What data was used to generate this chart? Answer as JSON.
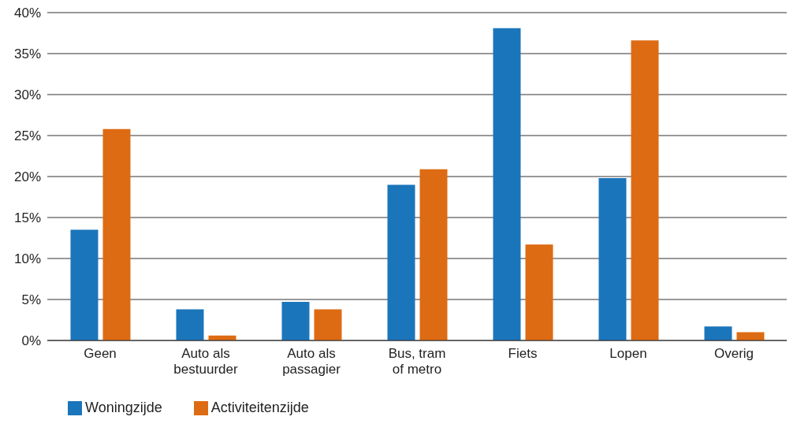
{
  "chart_data": {
    "type": "bar",
    "categories": [
      "Geen",
      "Auto als bestuurder",
      "Auto als passagier",
      "Bus, tram of metro",
      "Fiets",
      "Lopen",
      "Overig"
    ],
    "series": [
      {
        "name": "Woningzijde",
        "color": "#1b75bb",
        "values": [
          13.5,
          3.8,
          4.7,
          19.0,
          38.1,
          19.8,
          1.7
        ]
      },
      {
        "name": "Activiteitenzijde",
        "color": "#dd6b13",
        "values": [
          25.8,
          0.6,
          3.8,
          20.9,
          11.7,
          36.6,
          1.0
        ]
      }
    ],
    "ylim": [
      0,
      40
    ],
    "yticks": [
      {
        "value": 0,
        "label": "0%"
      },
      {
        "value": 5,
        "label": "5%"
      },
      {
        "value": 10,
        "label": "10%"
      },
      {
        "value": 15,
        "label": "15%"
      },
      {
        "value": 20,
        "label": "20%"
      },
      {
        "value": 25,
        "label": "25%"
      },
      {
        "value": 30,
        "label": "30%"
      },
      {
        "value": 35,
        "label": "35%"
      },
      {
        "value": 40,
        "label": "40%"
      }
    ],
    "grid": "y",
    "legend": "bottom left"
  }
}
